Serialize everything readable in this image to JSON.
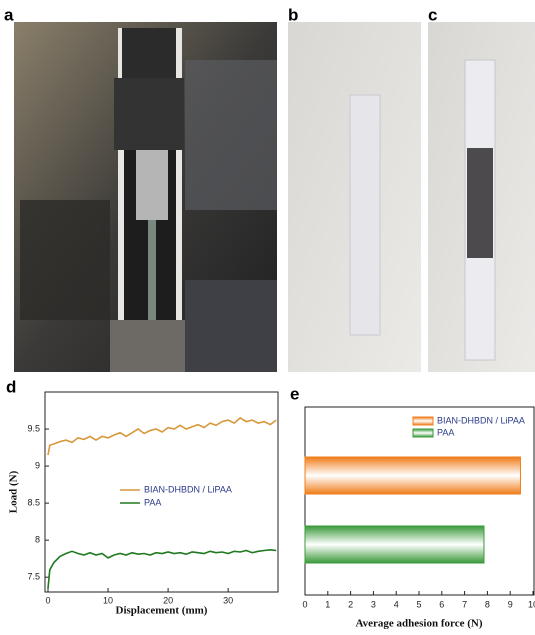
{
  "labels": [
    "a",
    "b",
    "c",
    "d",
    "e"
  ],
  "chart_data": [
    {
      "type": "line",
      "ylabel": "Load (N)",
      "xlabel": "Displacement  (mm)",
      "xlim": [
        -0.5,
        38.3
      ],
      "xticks": [
        0,
        10,
        20,
        30
      ],
      "ylim": [
        7.3,
        10.0
      ],
      "yticks": [
        7.5,
        8,
        8.5,
        9,
        9.5
      ],
      "x": [
        0,
        0.3,
        1,
        2,
        3,
        4,
        5,
        6,
        7,
        8,
        9,
        10,
        11,
        12,
        13,
        14,
        15,
        16,
        17,
        18,
        19,
        20,
        21,
        22,
        23,
        24,
        25,
        26,
        27,
        28,
        29,
        30,
        31,
        32,
        33,
        34,
        35,
        36,
        37,
        38
      ],
      "series": [
        {
          "name": "BIAN-DHBDN / LiPAA",
          "color": "#d8973a",
          "values": [
            9.15,
            9.28,
            9.3,
            9.33,
            9.35,
            9.32,
            9.38,
            9.36,
            9.4,
            9.35,
            9.4,
            9.38,
            9.42,
            9.45,
            9.4,
            9.45,
            9.5,
            9.44,
            9.48,
            9.5,
            9.46,
            9.52,
            9.5,
            9.55,
            9.5,
            9.53,
            9.56,
            9.52,
            9.58,
            9.55,
            9.6,
            9.62,
            9.58,
            9.65,
            9.6,
            9.62,
            9.58,
            9.6,
            9.56,
            9.62
          ]
        },
        {
          "name": "PAA",
          "color": "#1f7a1f",
          "values": [
            7.35,
            7.6,
            7.7,
            7.78,
            7.82,
            7.85,
            7.82,
            7.8,
            7.83,
            7.8,
            7.82,
            7.76,
            7.8,
            7.82,
            7.8,
            7.83,
            7.81,
            7.82,
            7.8,
            7.83,
            7.82,
            7.84,
            7.82,
            7.83,
            7.81,
            7.84,
            7.83,
            7.82,
            7.85,
            7.83,
            7.84,
            7.82,
            7.85,
            7.84,
            7.86,
            7.83,
            7.85,
            7.86,
            7.87,
            7.86
          ]
        }
      ]
    },
    {
      "type": "hbar",
      "xlabel": "Average adhesion force (N)",
      "xlim": [
        0,
        10
      ],
      "xticks": [
        0,
        1,
        2,
        3,
        4,
        5,
        6,
        7,
        8,
        9,
        10
      ],
      "categories": [
        null
      ],
      "series": [
        {
          "name": "BIAN-DHBDN / LiPAA",
          "color": "#f07d1a",
          "values": [
            9.45
          ]
        },
        {
          "name": "PAA",
          "color": "#3a9a3a",
          "values": [
            7.85
          ]
        }
      ]
    }
  ]
}
